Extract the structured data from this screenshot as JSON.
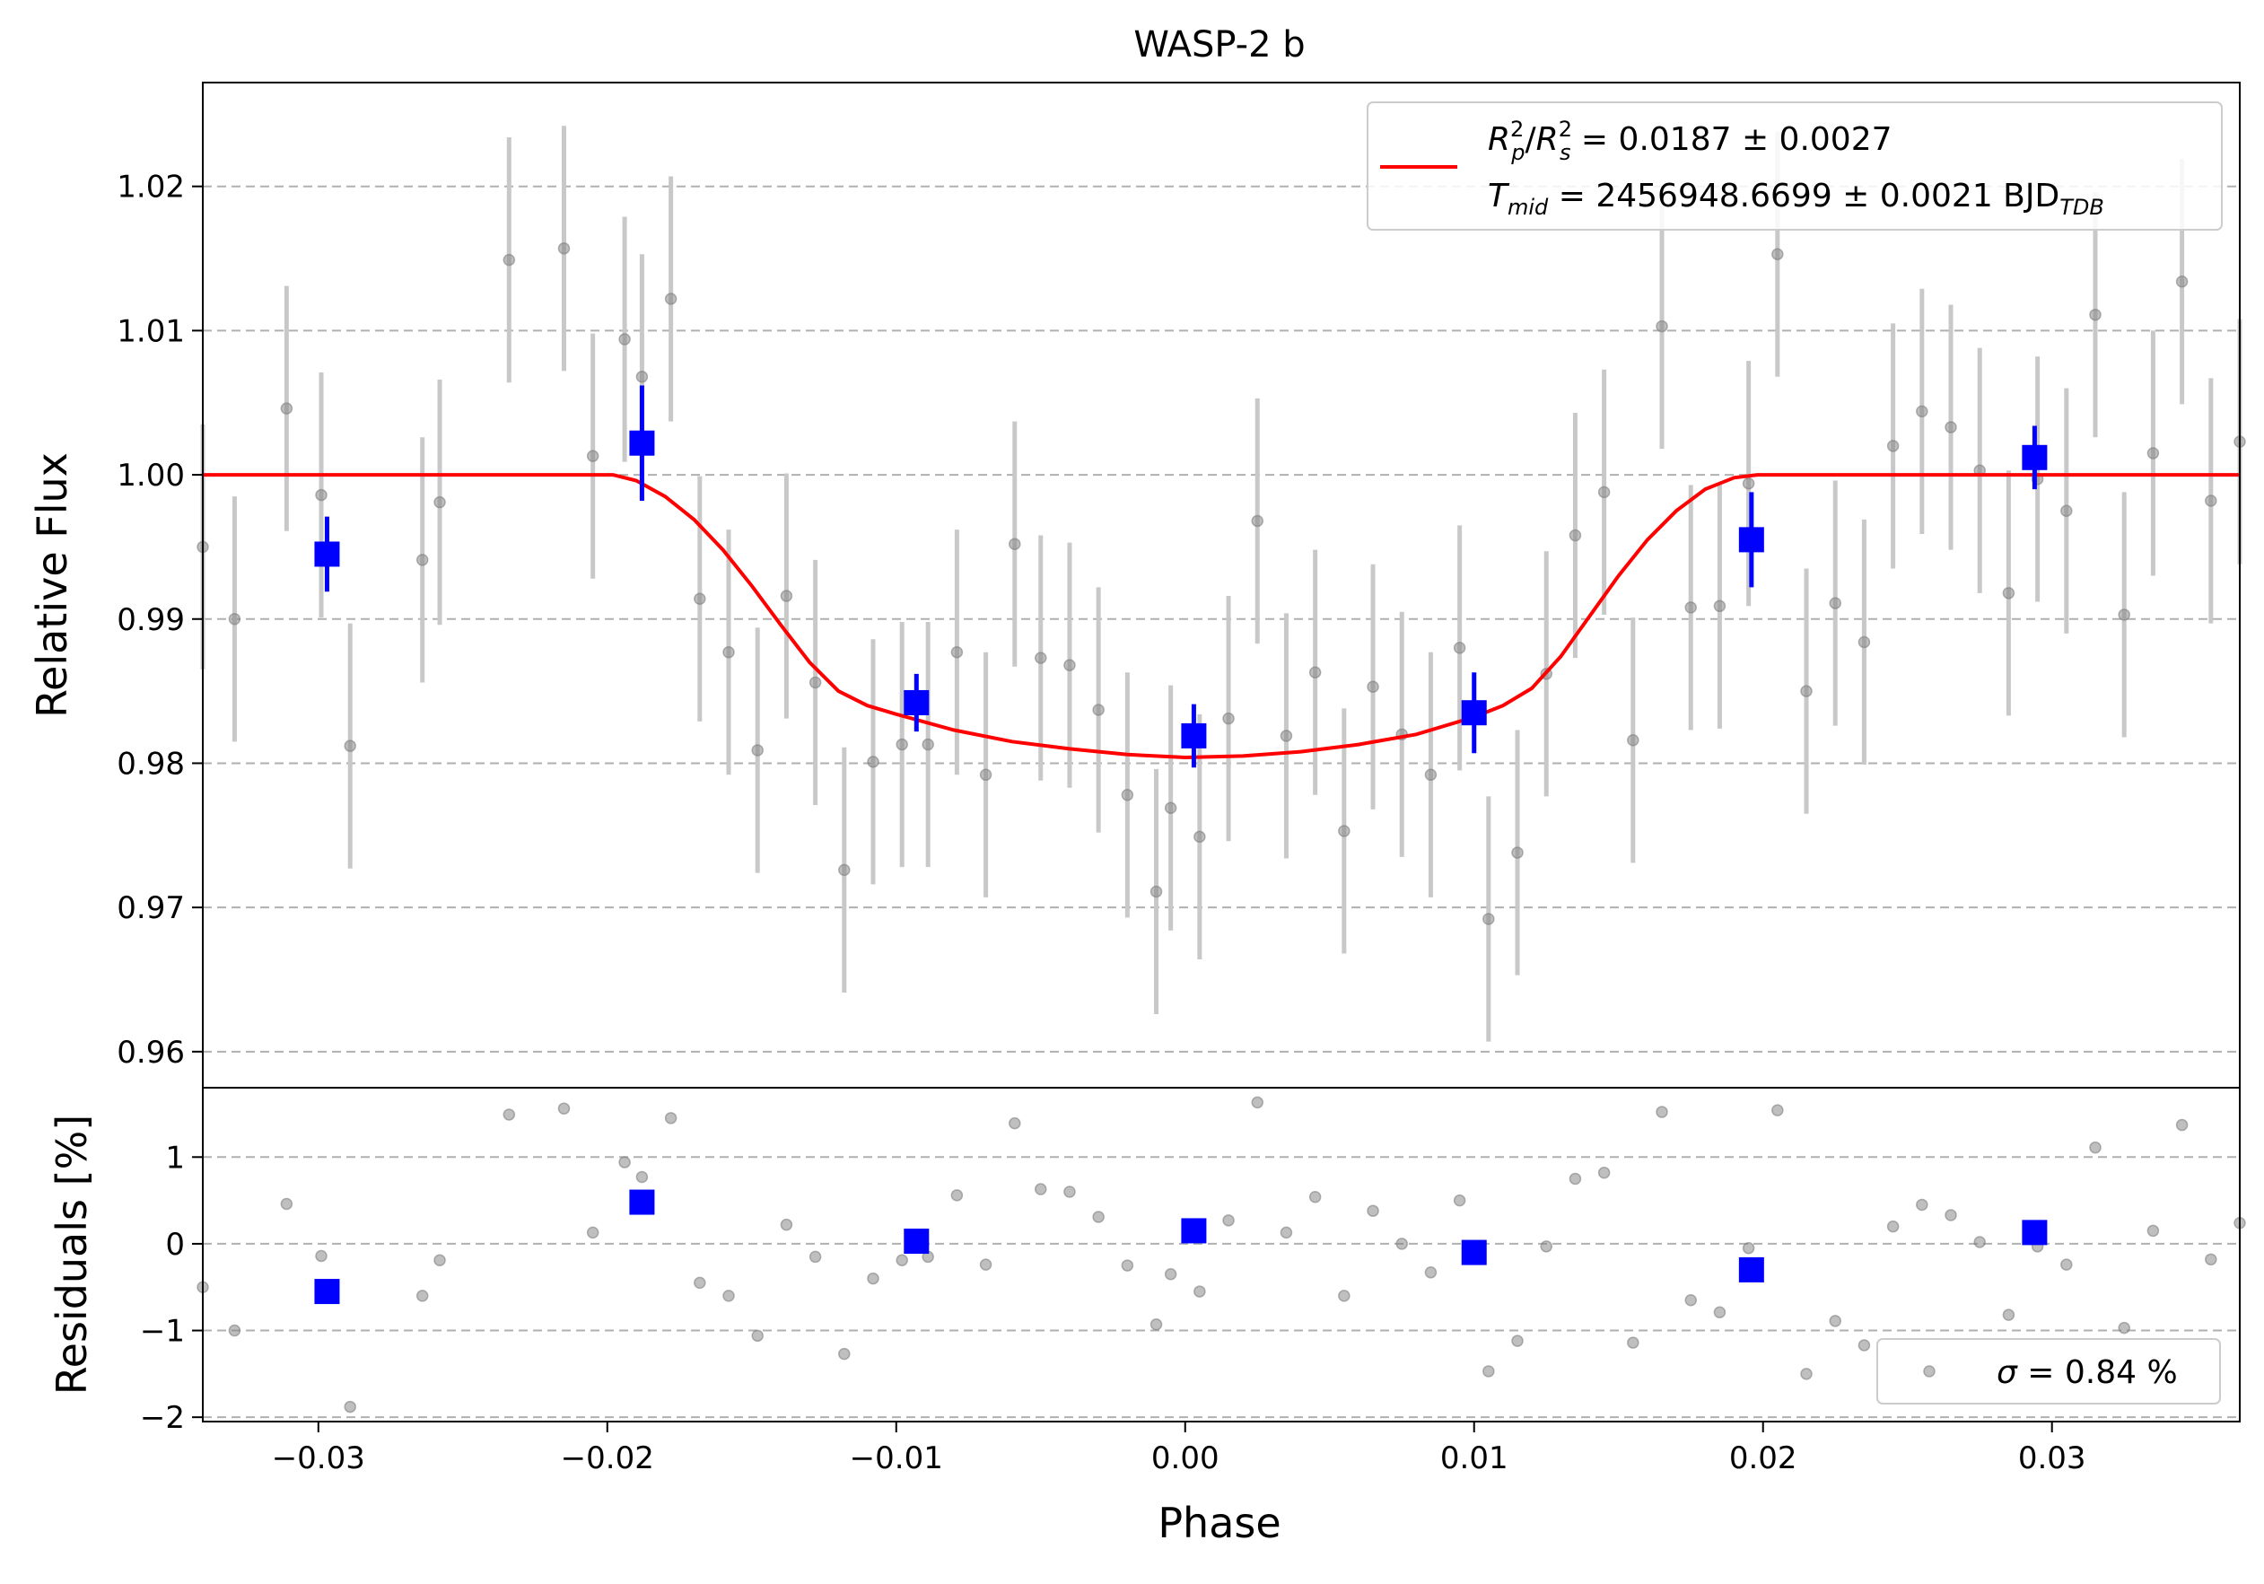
{
  "chart_data": {
    "type": "scatter",
    "title": "WASP-2 b",
    "xlabel": "Phase",
    "xlim": [
      -0.034,
      0.0365
    ],
    "xticks": [
      -0.03,
      -0.02,
      -0.01,
      0.0,
      0.01,
      0.02,
      0.03
    ],
    "xtick_labels": [
      "−0.03",
      "−0.02",
      "−0.01",
      "0.00",
      "0.01",
      "0.02",
      "0.03"
    ],
    "grid": "horizontal dashed",
    "colors": {
      "data": "#808080",
      "errorbar": "#c8c8c8",
      "binned": "#0000ff",
      "model": "#ff0000"
    },
    "panels": [
      {
        "name": "flux",
        "ylabel": "Relative Flux",
        "ylim": [
          0.9575,
          1.0272
        ],
        "yticks": [
          0.96,
          0.97,
          0.98,
          0.99,
          1.0,
          1.01,
          1.02
        ],
        "ytick_labels": [
          "0.96",
          "0.97",
          "0.98",
          "0.99",
          "1.00",
          "1.01",
          "1.02"
        ],
        "legend": {
          "placement": "upper-right",
          "line1": {
            "sym": "R",
            "sub1": "p",
            "sup1": "2",
            "sep": "/",
            "sym2": "R",
            "sub2": "s",
            "sup2": "2",
            "rest": " = 0.0187 ± 0.0027"
          },
          "line2": {
            "sym": "T",
            "sub": "mid",
            "rest": " = 2456948.6699 ± 0.0021 BJD",
            "tail_sub": "TDB"
          }
        },
        "data": {
          "x": [
            -0.034,
            -0.0329,
            -0.0311,
            -0.0299,
            -0.0289,
            -0.0264,
            -0.0258,
            -0.0234,
            -0.0215,
            -0.0205,
            -0.0194,
            -0.0188,
            -0.0178,
            -0.0168,
            -0.0158,
            -0.0148,
            -0.0138,
            -0.0128,
            -0.0118,
            -0.0108,
            -0.0098,
            -0.0089,
            -0.0079,
            -0.0069,
            -0.0059,
            -0.005,
            -0.004,
            -0.003,
            -0.002,
            -0.001,
            -0.0005,
            0.0005,
            0.0015,
            0.0025,
            0.0035,
            0.0045,
            0.0055,
            0.0065,
            0.0075,
            0.0085,
            0.0095,
            0.0105,
            0.0115,
            0.0125,
            0.0135,
            0.0145,
            0.0155,
            0.0165,
            0.0175,
            0.0185,
            0.0195,
            0.0205,
            0.0215,
            0.0225,
            0.0235,
            0.0245,
            0.0255,
            0.0265,
            0.0275,
            0.0285,
            0.0295,
            0.0305,
            0.0315,
            0.0325,
            0.0335,
            0.0345,
            0.0355,
            0.0365
          ],
          "y": [
            0.995,
            0.99,
            1.0046,
            0.9986,
            0.9812,
            0.9941,
            0.9981,
            1.0149,
            1.0157,
            1.0013,
            1.0094,
            1.0068,
            1.0122,
            0.9914,
            0.9877,
            0.9809,
            0.9916,
            0.9856,
            0.9726,
            0.9801,
            0.9813,
            0.9813,
            0.9877,
            0.9792,
            0.9952,
            0.9873,
            0.9868,
            0.9837,
            0.9778,
            0.9711,
            0.9769,
            0.9749,
            0.9831,
            0.9968,
            0.9819,
            0.9863,
            0.9753,
            0.9853,
            0.982,
            0.9792,
            0.988,
            0.9692,
            0.9738,
            0.9862,
            0.9958,
            0.9988,
            0.9816,
            1.0103,
            0.9908,
            0.9909,
            0.9994,
            1.0153,
            0.985,
            0.9911,
            0.9884,
            1.002,
            1.0044,
            1.0033,
            1.0003,
            0.9918,
            0.9997,
            0.9975,
            1.0111,
            0.9903,
            1.0015,
            1.0134,
            0.9982,
            1.0023
          ],
          "yerr": [
            0.0085
          ]
        },
        "binned": {
          "x": [
            -0.0297,
            -0.0188,
            -0.0093,
            0.0003,
            0.01,
            0.0196,
            0.0294
          ],
          "y": [
            0.9945,
            1.0022,
            0.9842,
            0.9819,
            0.9835,
            0.9955,
            1.0012
          ],
          "yerr": [
            0.0026,
            0.004,
            0.002,
            0.0022,
            0.0028,
            0.0033,
            0.0022
          ]
        },
        "model": {
          "x": [
            -0.034,
            -0.0198,
            -0.019,
            -0.018,
            -0.017,
            -0.016,
            -0.015,
            -0.014,
            -0.013,
            -0.012,
            -0.011,
            -0.01,
            -0.008,
            -0.006,
            -0.004,
            -0.002,
            0.0,
            0.002,
            0.004,
            0.006,
            0.008,
            0.01,
            0.011,
            0.012,
            0.013,
            0.014,
            0.015,
            0.016,
            0.017,
            0.018,
            0.019,
            0.0198,
            0.0365
          ],
          "y": [
            1.0,
            1.0,
            0.9996,
            0.9985,
            0.9969,
            0.9948,
            0.9923,
            0.9896,
            0.987,
            0.985,
            0.984,
            0.9834,
            0.9823,
            0.9815,
            0.981,
            0.9806,
            0.9804,
            0.9805,
            0.9808,
            0.9813,
            0.982,
            0.9832,
            0.984,
            0.9852,
            0.9874,
            0.9902,
            0.993,
            0.9955,
            0.9975,
            0.999,
            0.9998,
            1.0,
            1.0
          ]
        }
      },
      {
        "name": "residuals",
        "ylabel": "Residuals [%]",
        "ylim": [
          -2.05,
          1.8
        ],
        "yticks": [
          -2,
          -1,
          0,
          1
        ],
        "ytick_labels": [
          "−2",
          "−1",
          "0",
          "1"
        ],
        "legend": {
          "placement": "lower-right",
          "sym": "σ",
          "rest": " = 0.84 %"
        },
        "data": {
          "x": [
            -0.034,
            -0.0329,
            -0.0311,
            -0.0299,
            -0.0289,
            -0.0264,
            -0.0258,
            -0.0234,
            -0.0215,
            -0.0205,
            -0.0194,
            -0.0188,
            -0.0178,
            -0.0168,
            -0.0158,
            -0.0148,
            -0.0138,
            -0.0128,
            -0.0118,
            -0.0108,
            -0.0098,
            -0.0089,
            -0.0079,
            -0.0069,
            -0.0059,
            -0.005,
            -0.004,
            -0.003,
            -0.002,
            -0.001,
            -0.0005,
            0.0005,
            0.0015,
            0.0025,
            0.0035,
            0.0045,
            0.0055,
            0.0065,
            0.0075,
            0.0085,
            0.0095,
            0.0105,
            0.0115,
            0.0125,
            0.0135,
            0.0145,
            0.0155,
            0.0165,
            0.0175,
            0.0185,
            0.0195,
            0.0205,
            0.0215,
            0.0225,
            0.0235,
            0.0245,
            0.0255,
            0.0265,
            0.0275,
            0.0285,
            0.0295,
            0.0305,
            0.0315,
            0.0325,
            0.0335,
            0.0345,
            0.0355,
            0.0365
          ],
          "y": [
            -0.5,
            -1.0,
            0.46,
            -0.14,
            -1.88,
            -0.6,
            -0.19,
            1.49,
            1.56,
            0.13,
            0.94,
            0.77,
            1.45,
            -0.45,
            -0.6,
            -1.06,
            0.22,
            -0.15,
            -1.27,
            -0.4,
            -0.19,
            -0.15,
            0.56,
            -0.24,
            1.39,
            0.63,
            0.6,
            0.31,
            -0.25,
            -0.93,
            -0.35,
            -0.55,
            0.27,
            1.63,
            0.13,
            0.54,
            -0.6,
            0.38,
            0.0,
            -0.33,
            0.5,
            -1.47,
            -1.12,
            -0.03,
            0.75,
            0.82,
            -1.14,
            1.52,
            -0.65,
            -0.79,
            -0.05,
            1.54,
            -1.5,
            -0.89,
            -1.17,
            0.2,
            0.45,
            0.33,
            0.02,
            -0.82,
            -0.03,
            -0.24,
            1.11,
            -0.97,
            0.15,
            1.37,
            -0.18,
            0.24
          ]
        },
        "binned": {
          "x": [
            -0.0297,
            -0.0188,
            -0.0093,
            0.0003,
            0.01,
            0.0196,
            0.0294
          ],
          "y": [
            -0.55,
            0.48,
            0.03,
            0.15,
            -0.1,
            -0.3,
            0.13
          ]
        }
      }
    ]
  }
}
